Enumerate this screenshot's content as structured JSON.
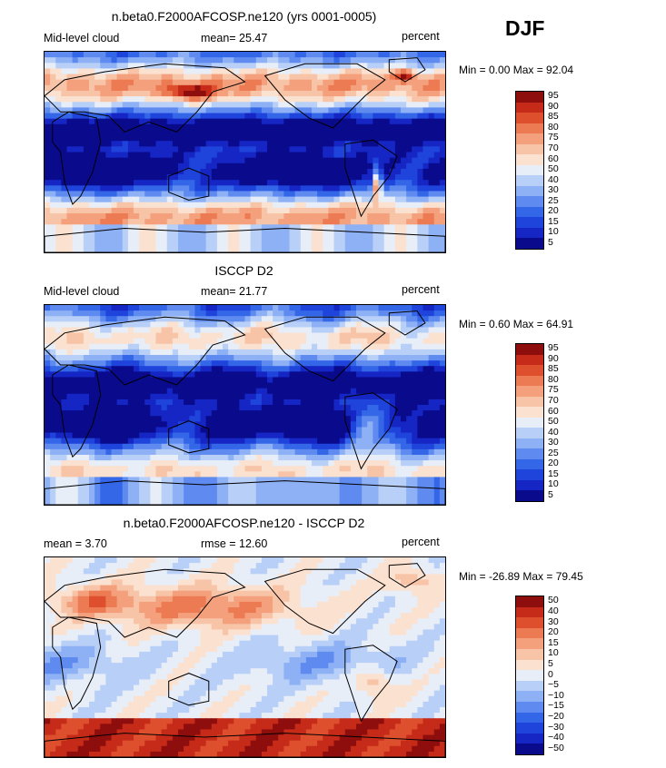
{
  "season_label": "DJF",
  "palette": [
    "#0a0a8c",
    "#1626c4",
    "#1f44dc",
    "#3466e8",
    "#5f8bf0",
    "#8eb0f5",
    "#b8cff7",
    "#e8eef8",
    "#fbe1d0",
    "#f8c4a8",
    "#f4a07c",
    "#ec7a52",
    "#de4f2e",
    "#c52b18",
    "#8e0d0d"
  ],
  "chart_data": [
    {
      "type": "heatmap",
      "title": "n.beta0.F2000AFCOSP.ne120 (yrs 0001-0005)",
      "variable_label": "Mid-level cloud",
      "stat_text": "mean=  25.47",
      "units": "percent",
      "min_max_text": "Min =   0.00 Max =  92.04",
      "min": 0.0,
      "max": 92.04,
      "mean": 25.47,
      "colorbar_levels": [
        "95",
        "90",
        "85",
        "80",
        "75",
        "70",
        "60",
        "50",
        "40",
        "30",
        "25",
        "20",
        "15",
        "10",
        "5"
      ]
    },
    {
      "type": "heatmap",
      "title": "ISCCP D2",
      "variable_label": "Mid-level cloud",
      "stat_text": "mean=  21.77",
      "units": "percent",
      "min_max_text": "Min =   0.60 Max =  64.91",
      "min": 0.6,
      "max": 64.91,
      "mean": 21.77,
      "colorbar_levels": [
        "95",
        "90",
        "85",
        "80",
        "75",
        "70",
        "60",
        "50",
        "40",
        "30",
        "25",
        "20",
        "15",
        "10",
        "5"
      ]
    },
    {
      "type": "heatmap",
      "title": "n.beta0.F2000AFCOSP.ne120 - ISCCP D2",
      "mean_text": "mean =    3.70",
      "rmse_text": "rmse =   12.60",
      "units": "percent",
      "min_max_text": "Min = -26.89 Max =  79.45",
      "min": -26.89,
      "max": 79.45,
      "mean": 3.7,
      "rmse": 12.6,
      "colorbar_levels": [
        "50",
        "40",
        "30",
        "20",
        "15",
        "10",
        "5",
        "0",
        "−5",
        "−10",
        "−15",
        "−20",
        "−30",
        "−40",
        "−50"
      ]
    }
  ]
}
